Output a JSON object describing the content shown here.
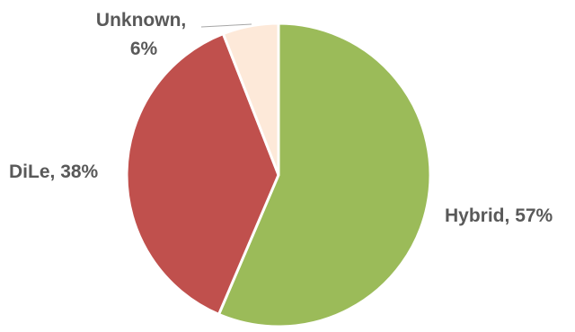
{
  "chart_data": {
    "type": "pie",
    "slices": [
      {
        "label": "Hybrid",
        "percent_label": "57%",
        "value": 57,
        "color": "#9BBB59"
      },
      {
        "label": "DiLe",
        "percent_label": "38%",
        "value": 38,
        "color": "#C0504D"
      },
      {
        "label": "Unknown",
        "percent_label": "6%",
        "value": 6,
        "color": "#FDE9D9"
      }
    ],
    "start_angle": "12 o'clock",
    "direction": "clockwise",
    "legend": "none"
  }
}
